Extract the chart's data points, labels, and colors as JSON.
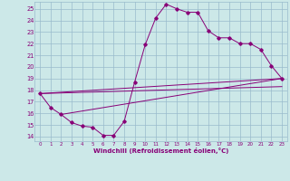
{
  "xlabel": "Windchill (Refroidissement éolien,°C)",
  "bg_color": "#cce8e8",
  "grid_color": "#99bbcc",
  "line_color": "#880077",
  "xlim": [
    -0.5,
    23.5
  ],
  "ylim": [
    13.6,
    25.6
  ],
  "xticks": [
    0,
    1,
    2,
    3,
    4,
    5,
    6,
    7,
    8,
    9,
    10,
    11,
    12,
    13,
    14,
    15,
    16,
    17,
    18,
    19,
    20,
    21,
    22,
    23
  ],
  "yticks": [
    14,
    15,
    16,
    17,
    18,
    19,
    20,
    21,
    22,
    23,
    24,
    25
  ],
  "main_x": [
    0,
    1,
    2,
    3,
    4,
    5,
    6,
    7,
    8,
    9,
    10,
    11,
    12,
    13,
    14,
    15,
    16,
    17,
    18,
    19,
    20,
    21,
    22,
    23
  ],
  "main_y": [
    17.7,
    16.5,
    15.9,
    15.2,
    14.9,
    14.8,
    14.1,
    14.1,
    15.3,
    18.7,
    21.9,
    24.2,
    25.4,
    25.0,
    24.7,
    24.7,
    23.1,
    22.5,
    22.5,
    22.0,
    22.0,
    21.5,
    20.1,
    19.0
  ],
  "trend1_x": [
    0,
    23
  ],
  "trend1_y": [
    17.7,
    19.0
  ],
  "trend2_x": [
    0,
    23
  ],
  "trend2_y": [
    17.7,
    18.3
  ],
  "trend3_x": [
    2,
    23
  ],
  "trend3_y": [
    15.9,
    19.0
  ]
}
